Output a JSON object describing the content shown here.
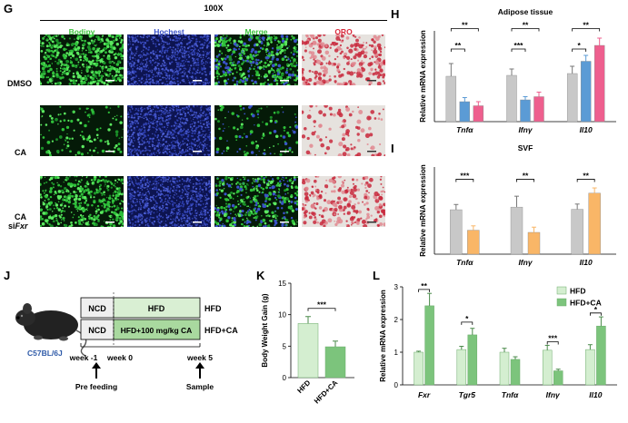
{
  "panels": {
    "G": {
      "letter": "G",
      "magnification": "100X",
      "columns": [
        "Bodipy",
        "Hochest",
        "Merge",
        "ORO"
      ],
      "column_colors": [
        "#3cc43c",
        "#3a52c8",
        "#3cc43c",
        "#d8283a"
      ],
      "rows": [
        "DMSO",
        "CA"
      ],
      "row3_line1": "CA",
      "row3_line2_prefix": "si",
      "row3_line2_gene": "Fxr"
    },
    "H": {
      "letter": "H",
      "title": "Adipose tissue",
      "ylabel": "Relative mRNA expression"
    },
    "I": {
      "letter": "I",
      "title": "SVF",
      "ylabel": "Relative mRNA expression"
    },
    "J": {
      "letter": "J",
      "strain": "C57BL/6J",
      "ncd": "NCD",
      "hfd": "HFD",
      "hfd_ca": "HFD+100 mg/kg CA",
      "group1": "HFD",
      "group2": "HFD+CA",
      "week_m1": "week -1",
      "week_0": "week 0",
      "week_5": "week 5",
      "pre_feeding": "Pre feeding",
      "sample": "Sample"
    },
    "K": {
      "letter": "K",
      "ylabel": "Body Weight Gain (g)"
    },
    "L": {
      "letter": "L",
      "ylabel": "Relative mRNA expression"
    }
  },
  "chart_data": [
    {
      "id": "H",
      "type": "bar",
      "title": "Adipose tissue",
      "ylabel": "Relative mRNA expression",
      "categories": [
        "Tnfα",
        "Ifnγ",
        "Il10"
      ],
      "series": [
        {
          "color": "#c8c8c8",
          "values": [
            1.0,
            1.02,
            1.06
          ],
          "errors": [
            0.28,
            0.14,
            0.16
          ]
        },
        {
          "color": "#5b9bd5",
          "values": [
            0.44,
            0.48,
            1.33
          ],
          "errors": [
            0.09,
            0.07,
            0.13
          ]
        },
        {
          "color": "#ee5f8e",
          "values": [
            0.35,
            0.55,
            1.68
          ],
          "errors": [
            0.09,
            0.1,
            0.16
          ]
        }
      ],
      "ylim": [
        0,
        2
      ],
      "significance": [
        {
          "cat": 0,
          "from": 0,
          "to": 1,
          "label": "**",
          "level": 1.6
        },
        {
          "cat": 0,
          "from": 0,
          "to": 2,
          "label": "**",
          "level": 2.05
        },
        {
          "cat": 1,
          "from": 0,
          "to": 1,
          "label": "***",
          "level": 1.6
        },
        {
          "cat": 1,
          "from": 0,
          "to": 2,
          "label": "**",
          "level": 2.05
        },
        {
          "cat": 2,
          "from": 0,
          "to": 1,
          "label": "*",
          "level": 1.6
        },
        {
          "cat": 2,
          "from": 0,
          "to": 2,
          "label": "**",
          "level": 2.05
        }
      ]
    },
    {
      "id": "I",
      "type": "bar",
      "title": "SVF",
      "ylabel": "Relative mRNA expression",
      "categories": [
        "Tnfα",
        "Ifnγ",
        "Il10"
      ],
      "series": [
        {
          "color": "#c8c8c8",
          "values": [
            1.02,
            1.08,
            1.03
          ],
          "errors": [
            0.12,
            0.25,
            0.12
          ]
        },
        {
          "color": "#f9b667",
          "values": [
            0.55,
            0.5,
            1.4
          ],
          "errors": [
            0.1,
            0.12,
            0.12
          ]
        }
      ],
      "ylim": [
        0,
        2
      ],
      "significance": [
        {
          "cat": 0,
          "from": 0,
          "to": 1,
          "label": "***",
          "level": 1.72
        },
        {
          "cat": 1,
          "from": 0,
          "to": 1,
          "label": "**",
          "level": 1.72
        },
        {
          "cat": 2,
          "from": 0,
          "to": 1,
          "label": "**",
          "level": 1.72
        }
      ]
    },
    {
      "id": "K",
      "type": "bar",
      "ylabel": "Body Weight Gain (g)",
      "categories": [
        "HFD",
        "HFD+CA"
      ],
      "series": [
        {
          "colors": [
            "#d4eed0",
            "#7cc47c"
          ],
          "values": [
            8.6,
            4.9
          ],
          "errors": [
            1.1,
            0.9
          ]
        }
      ],
      "ylim": [
        0,
        15
      ],
      "yticks": [
        0,
        5,
        10,
        15
      ],
      "significance": [
        {
          "from": 0,
          "to": 1,
          "label": "***",
          "level": 11.0
        }
      ]
    },
    {
      "id": "L",
      "type": "bar",
      "ylabel": "Relative mRNA expression",
      "categories": [
        "Fxr",
        "Tgr5",
        "Tnfα",
        "Ifnγ",
        "Il10"
      ],
      "series": [
        {
          "name": "HFD",
          "color": "#d4eed0",
          "values": [
            1.0,
            1.08,
            1.0,
            1.06,
            1.08
          ],
          "errors": [
            0.03,
            0.1,
            0.12,
            0.15,
            0.15
          ]
        },
        {
          "name": "HFD+CA",
          "color": "#7cc47c",
          "values": [
            2.42,
            1.53,
            0.78,
            0.43,
            1.8
          ],
          "errors": [
            0.38,
            0.2,
            0.08,
            0.05,
            0.28
          ]
        }
      ],
      "ylim": [
        0,
        3
      ],
      "yticks": [
        0,
        1,
        2,
        3
      ],
      "legend": "top-right",
      "significance": [
        {
          "cat": 0,
          "label": "**",
          "level": 2.92
        },
        {
          "cat": 1,
          "label": "*",
          "level": 1.92
        },
        {
          "cat": 3,
          "label": "***",
          "level": 1.32
        },
        {
          "cat": 4,
          "label": "*",
          "level": 2.2
        }
      ]
    }
  ]
}
